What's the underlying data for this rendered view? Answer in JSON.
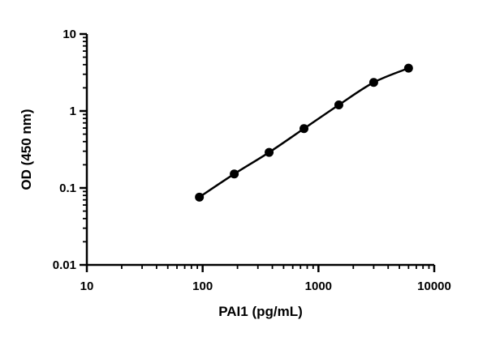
{
  "chart_data": {
    "type": "scatter",
    "xscale": "log",
    "yscale": "log",
    "xlim": [
      10,
      10000
    ],
    "ylim": [
      0.01,
      10
    ],
    "xlabel": "PAI1 (pg/mL)",
    "ylabel": "OD (450 nm)",
    "xticks": [
      10,
      100,
      1000,
      10000
    ],
    "xtick_labels": [
      "10",
      "100",
      "1000",
      "10000"
    ],
    "yticks": [
      0.01,
      0.1,
      1,
      10
    ],
    "ytick_labels": [
      "0.01",
      "0.1",
      "1",
      "10"
    ],
    "grid": false,
    "fit_line": true,
    "series": [
      {
        "x": [
          93.75,
          187.5,
          375,
          750,
          1500,
          3000,
          6000
        ],
        "y": [
          0.076,
          0.152,
          0.29,
          0.59,
          1.2,
          2.35,
          3.6
        ]
      }
    ]
  }
}
